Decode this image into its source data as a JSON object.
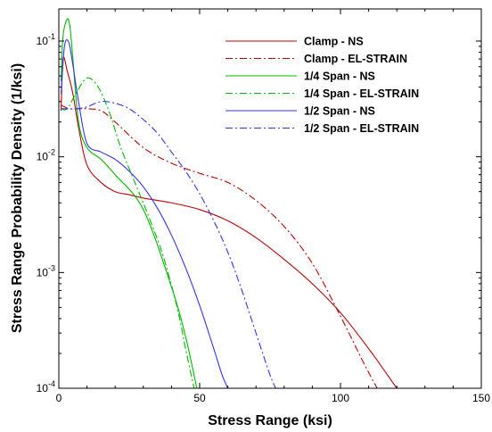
{
  "chart_data": {
    "type": "line",
    "title": "",
    "xlabel": "Stress Range (ksi)",
    "ylabel": "Stress Range Probability Density (1/ksi)",
    "xlim": [
      0,
      150
    ],
    "ylim": [
      0.0001,
      0.2
    ],
    "yscale": "log",
    "x_ticks": [
      0,
      50,
      100,
      150
    ],
    "x_tick_labels": [
      "0",
      "50",
      "100",
      "150"
    ],
    "y_ticks": [
      0.0001,
      0.001,
      0.01,
      0.1
    ],
    "y_tick_labels": [
      {
        "base": "10",
        "exp": "-4"
      },
      {
        "base": "10",
        "exp": "-3"
      },
      {
        "base": "10",
        "exp": "-2"
      },
      {
        "base": "10",
        "exp": "-1"
      }
    ],
    "grid": false,
    "legend_position": "top-right",
    "series": [
      {
        "name": "Clamp - NS",
        "color": "#c00000",
        "dash": "solid",
        "x": [
          0.8,
          1.5,
          3,
          5,
          7,
          10,
          15,
          20,
          25,
          30,
          40,
          50,
          60,
          70,
          80,
          90,
          100,
          110,
          120
        ],
        "y": [
          0.025,
          0.07,
          0.055,
          0.035,
          0.018,
          0.0085,
          0.006,
          0.005,
          0.0047,
          0.0044,
          0.004,
          0.0035,
          0.0028,
          0.002,
          0.0013,
          0.0008,
          0.00045,
          0.00022,
          0.0001
        ]
      },
      {
        "name": "Clamp - EL-STRAIN",
        "color": "#c00000",
        "dash": "dashdot",
        "x": [
          0.8,
          2,
          4,
          7,
          10,
          15,
          20,
          30,
          40,
          50,
          60,
          70,
          80,
          90,
          100,
          108,
          113
        ],
        "y": [
          0.028,
          0.027,
          0.026,
          0.026,
          0.026,
          0.025,
          0.02,
          0.012,
          0.0088,
          0.0072,
          0.006,
          0.0042,
          0.0025,
          0.0012,
          0.00042,
          0.00017,
          0.0001
        ]
      },
      {
        "name": "1/4 Span - NS",
        "color": "#00bb00",
        "dash": "solid",
        "x": [
          0.8,
          1.5,
          3,
          4,
          5,
          7,
          10,
          15,
          20,
          30,
          40,
          45,
          49
        ],
        "y": [
          0.045,
          0.11,
          0.155,
          0.13,
          0.07,
          0.02,
          0.012,
          0.0095,
          0.007,
          0.0035,
          0.00075,
          0.00028,
          0.0001
        ]
      },
      {
        "name": "1/4 Span - EL-STRAIN",
        "color": "#00bb00",
        "dash": "dashdot",
        "x": [
          0.8,
          3,
          6,
          10,
          14,
          18,
          22,
          27,
          32,
          37,
          42,
          45,
          48
        ],
        "y": [
          0.026,
          0.026,
          0.035,
          0.048,
          0.04,
          0.024,
          0.012,
          0.006,
          0.003,
          0.0014,
          0.0005,
          0.00022,
          0.0001
        ]
      },
      {
        "name": "1/2 Span - NS",
        "color": "#3333ee",
        "dash": "solid",
        "x": [
          0.8,
          2,
          3.5,
          5,
          7,
          10,
          15,
          20,
          25,
          30,
          35,
          40,
          45,
          50,
          55,
          58,
          60
        ],
        "y": [
          0.035,
          0.09,
          0.098,
          0.062,
          0.03,
          0.013,
          0.011,
          0.0095,
          0.0075,
          0.0055,
          0.0036,
          0.0021,
          0.0011,
          0.00052,
          0.00022,
          0.00013,
          0.0001
        ]
      },
      {
        "name": "1/2 Span - EL-STRAIN",
        "color": "#3333ee",
        "dash": "dashdot",
        "x": [
          0.8,
          3,
          6,
          10,
          15,
          20,
          25,
          30,
          35,
          40,
          45,
          50,
          55,
          60,
          65,
          70,
          75,
          77
        ],
        "y": [
          0.026,
          0.026,
          0.026,
          0.027,
          0.03,
          0.029,
          0.026,
          0.021,
          0.016,
          0.011,
          0.0075,
          0.0048,
          0.0028,
          0.0015,
          0.0007,
          0.0003,
          0.00013,
          0.0001
        ]
      }
    ]
  }
}
